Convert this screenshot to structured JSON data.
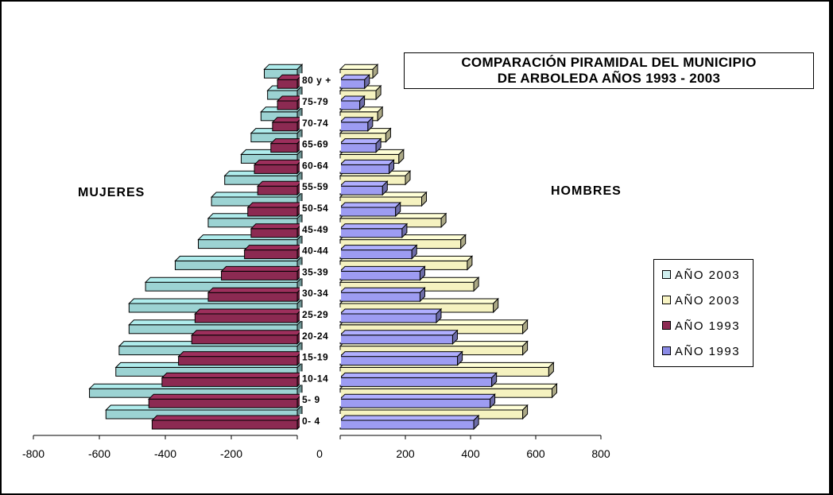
{
  "chart_data": {
    "type": "bar",
    "title": "COMPARACIÓN PIRAMIDAL DEL MUNICIPIO DE ARBOLEDA AÑOS 1993 - 2003",
    "title_lines": [
      "COMPARACIÓN PIRAMIDAL DEL MUNICIPIO",
      "DE ARBOLEDA AÑOS 1993 - 2003"
    ],
    "side_labels": {
      "left": "MUJERES",
      "right": "HOMBRES"
    },
    "categories": [
      "0- 4",
      "5- 9",
      "10-14",
      "15-19",
      "20-24",
      "25-29",
      "30-34",
      "35-39",
      "40-44",
      "45-49",
      "50-54",
      "55-59",
      "60-64",
      "65-69",
      "70-74",
      "75-79",
      "80 y +"
    ],
    "left_axis": {
      "ticks": [
        "-800",
        "-600",
        "-400",
        "-200",
        "0"
      ],
      "range": [
        -800,
        0
      ]
    },
    "right_axis": {
      "ticks": [
        "0",
        "200",
        "400",
        "600",
        "800"
      ],
      "range": [
        0,
        800
      ]
    },
    "series": [
      {
        "name": "AÑO 2003",
        "side": "left",
        "color": "#9cd3d3",
        "values": [
          -580,
          -630,
          -550,
          -540,
          -510,
          -510,
          -460,
          -370,
          -300,
          -270,
          -260,
          -220,
          -170,
          -140,
          -110,
          -90,
          -100
        ]
      },
      {
        "name": "AÑO 2003",
        "side": "right",
        "color": "#f5f2c0",
        "values": [
          560,
          650,
          640,
          560,
          560,
          470,
          410,
          390,
          370,
          310,
          250,
          200,
          180,
          140,
          115,
          110,
          100
        ]
      },
      {
        "name": "AÑO 1993",
        "side": "left",
        "color": "#8c2a52",
        "values": [
          -440,
          -450,
          -410,
          -360,
          -320,
          -310,
          -270,
          -230,
          -160,
          -140,
          -150,
          -120,
          -130,
          -80,
          -75,
          -60,
          -60
        ]
      },
      {
        "name": "AÑO 1993",
        "side": "right",
        "color": "#9d9cf2",
        "values": [
          410,
          460,
          465,
          360,
          345,
          295,
          245,
          245,
          220,
          190,
          170,
          130,
          150,
          110,
          85,
          60,
          75
        ]
      }
    ],
    "legend": {
      "position": "right",
      "items": [
        {
          "label": "AÑO 2003",
          "color": "#cfeeee"
        },
        {
          "label": "AÑO 2003",
          "color": "#f8f4c4"
        },
        {
          "label": "AÑO 1993",
          "color": "#8c2a52"
        },
        {
          "label": "AÑO 1993",
          "color": "#8b8be6"
        }
      ]
    },
    "grid": false
  }
}
